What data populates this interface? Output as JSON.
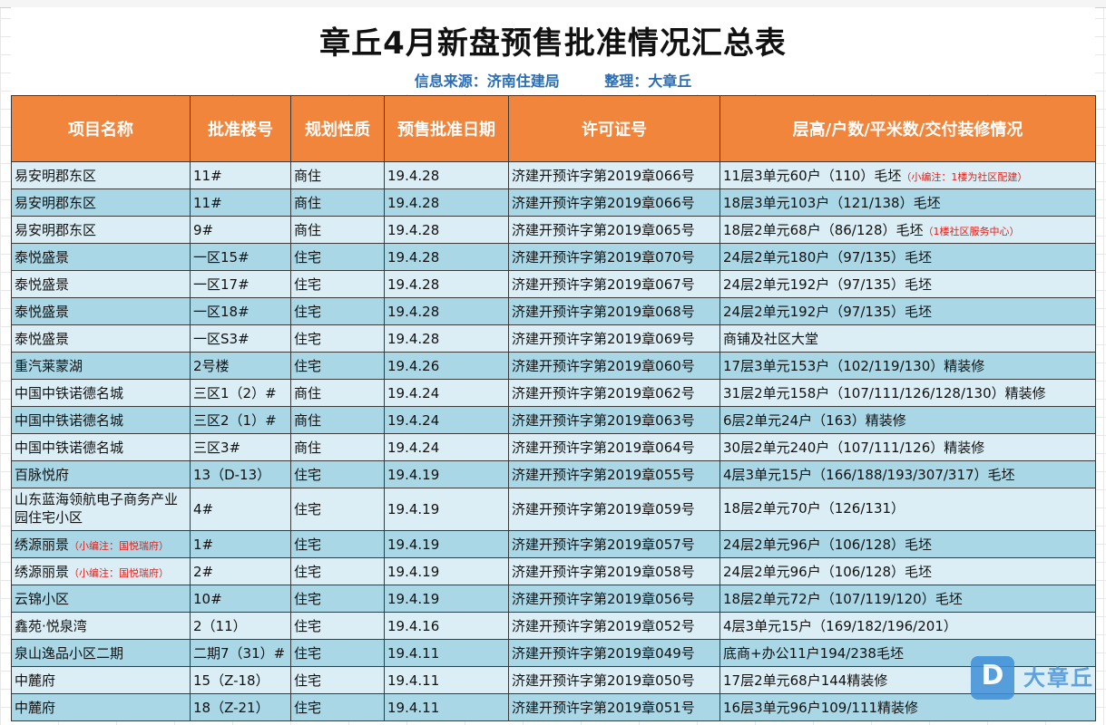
{
  "title": "章丘4月新盘预售批准情况汇总表",
  "source": {
    "info": "信息来源：济南住建局",
    "editor": "整理：大章丘"
  },
  "columns": [
    "项目名称",
    "批准楼号",
    "规划性质",
    "预售批准日期",
    "许可证号",
    "层高/户数/平米数/交付装修情况"
  ],
  "rows": [
    {
      "name": "易安明郡东区",
      "name_note": "",
      "building": "11#",
      "type": "商住",
      "date": "19.4.28",
      "permit": "济建开预许字第2019章066号",
      "detail": "11层3单元60户（110）毛坯",
      "detail_note": "（小编注：1楼为社区配建）"
    },
    {
      "name": "易安明郡东区",
      "name_note": "",
      "building": "11#",
      "type": "商住",
      "date": "19.4.28",
      "permit": "济建开预许字第2019章066号",
      "detail": "18层3单元103户（121/138）毛坯",
      "detail_note": ""
    },
    {
      "name": "易安明郡东区",
      "name_note": "",
      "building": "9#",
      "type": "商住",
      "date": "19.4.28",
      "permit": "济建开预许字第2019章065号",
      "detail": "18层2单元68户（86/128）毛坯",
      "detail_note": "（1楼社区服务中心）"
    },
    {
      "name": "泰悦盛景",
      "name_note": "",
      "building": "一区15#",
      "type": "住宅",
      "date": "19.4.28",
      "permit": "济建开预许字第2019章070号",
      "detail": "24层2单元180户（97/135）毛坯",
      "detail_note": ""
    },
    {
      "name": "泰悦盛景",
      "name_note": "",
      "building": "一区17#",
      "type": "住宅",
      "date": "19.4.28",
      "permit": "济建开预许字第2019章067号",
      "detail": "24层2单元192户（97/135）毛坯",
      "detail_note": ""
    },
    {
      "name": "泰悦盛景",
      "name_note": "",
      "building": "一区18#",
      "type": "住宅",
      "date": "19.4.28",
      "permit": "济建开预许字第2019章068号",
      "detail": "24层2单元192户（97/135）毛坯",
      "detail_note": ""
    },
    {
      "name": "泰悦盛景",
      "name_note": "",
      "building": "一区S3#",
      "type": "住宅",
      "date": "19.4.28",
      "permit": "济建开预许字第2019章069号",
      "detail": "商铺及社区大堂",
      "detail_note": ""
    },
    {
      "name": "重汽莱蒙湖",
      "name_note": "",
      "building": "2号楼",
      "type": "住宅",
      "date": "19.4.26",
      "permit": "济建开预许字第2019章060号",
      "detail": "17层3单元153户（102/119/130）精装修",
      "detail_note": ""
    },
    {
      "name": "中国中铁诺德名城",
      "name_note": "",
      "building": "三区1（2）#",
      "type": "商住",
      "date": "19.4.24",
      "permit": "济建开预许字第2019章062号",
      "detail": "31层2单元158户（107/111/126/128/130）精装修",
      "detail_note": ""
    },
    {
      "name": "中国中铁诺德名城",
      "name_note": "",
      "building": "三区2（1）#",
      "type": "商住",
      "date": "19.4.24",
      "permit": "济建开预许字第2019章063号",
      "detail": "6层2单元24户（163）精装修",
      "detail_note": ""
    },
    {
      "name": "中国中铁诺德名城",
      "name_note": "",
      "building": "三区3#",
      "type": "商住",
      "date": "19.4.24",
      "permit": "济建开预许字第2019章064号",
      "detail": "30层2单元240户（107/111/126）精装修",
      "detail_note": ""
    },
    {
      "name": "百脉悦府",
      "name_note": "",
      "building": "13（D-13）",
      "type": "住宅",
      "date": "19.4.19",
      "permit": "济建开预许字第2019章055号",
      "detail": "4层3单元15户（166/188/193/307/317）毛坯",
      "detail_note": ""
    },
    {
      "name": "山东蓝海领航电子商务产业园住宅小区",
      "name_note": "",
      "building": "4#",
      "type": "住宅",
      "date": "19.4.19",
      "permit": "济建开预许字第2019章059号",
      "detail": "18层2单元70户（126/131）",
      "detail_note": "",
      "tall": true
    },
    {
      "name": "绣源丽景",
      "name_note": "（小编注：国悦瑞府）",
      "building": "1#",
      "type": "住宅",
      "date": "19.4.19",
      "permit": "济建开预许字第2019章057号",
      "detail": "24层2单元96户（106/128）毛坯",
      "detail_note": ""
    },
    {
      "name": "绣源丽景",
      "name_note": "（小编注：国悦瑞府）",
      "building": "2#",
      "type": "住宅",
      "date": "19.4.19",
      "permit": "济建开预许字第2019章058号",
      "detail": "24层2单元96户（106/128）毛坯",
      "detail_note": ""
    },
    {
      "name": "云锦小区",
      "name_note": "",
      "building": "10#",
      "type": "住宅",
      "date": "19.4.19",
      "permit": "济建开预许字第2019章056号",
      "detail": "18层2单元72户（107/119/120）毛坯",
      "detail_note": ""
    },
    {
      "name": "鑫苑·悦泉湾",
      "name_note": "",
      "building": "2（11）",
      "type": "住宅",
      "date": "19.4.16",
      "permit": "济建开预许字第2019章052号",
      "detail": "4层3单元15户（169/182/196/201）",
      "detail_note": ""
    },
    {
      "name": "泉山逸品小区二期",
      "name_note": "",
      "building": "二期7（31）#",
      "type": "住宅",
      "date": "19.4.11",
      "permit": "济建开预许字第2019章049号",
      "detail": "底商+办公11户194/238毛坯",
      "detail_note": ""
    },
    {
      "name": "中麓府",
      "name_note": "",
      "building": "15（Z-18）",
      "type": "住宅",
      "date": "19.4.11",
      "permit": "济建开预许字第2019章050号",
      "detail": "17层2单元68户144精装修",
      "detail_note": ""
    },
    {
      "name": "中麓府",
      "name_note": "",
      "building": "18（Z-21）",
      "type": "住宅",
      "date": "19.4.11",
      "permit": "济建开预许字第2019章051号",
      "detail": "16层3单元96户109/111精装修",
      "detail_note": ""
    }
  ],
  "watermark": {
    "text": "大章丘",
    "icon": "d-logo-icon"
  },
  "colors": {
    "header_bg": "#f0853b",
    "row_light": "#dbeef5",
    "row_dark": "#a9d7e6",
    "note_red": "#e0201b",
    "source_blue": "#2a6db3"
  }
}
